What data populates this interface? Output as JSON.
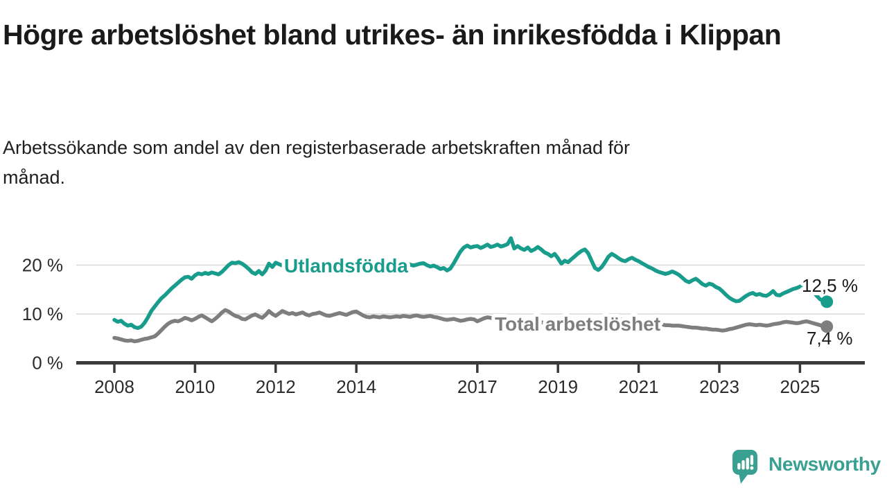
{
  "header": {
    "title": "Högre arbetslöshet bland utrikes- än inrikesfödda i Klippan",
    "subtitle": "Arbetssökande som andel av den registerbaserade arbetskraften månad för\nmånad."
  },
  "footer": {
    "brand": "Newsworthy"
  },
  "colors": {
    "accent_teal": "#189c8c",
    "line_gray": "#7e7e7e",
    "axis": "#3a3a3a",
    "grid": "#d9d9d9",
    "text_dark": "#1a1a1a",
    "brand_teal": "#3aa091",
    "background": "#ffffff"
  },
  "chart_data": {
    "type": "line",
    "unit": "%",
    "frequency": "monthly",
    "start_year": 2008,
    "start_month": 1,
    "end_year": 2025,
    "end_month": 9,
    "grid": "horizontal",
    "legend_position": "inline-labels",
    "ylim": [
      0,
      26
    ],
    "x_tick_years": [
      2008,
      2010,
      2012,
      2014,
      2017,
      2019,
      2021,
      2023,
      2025
    ],
    "y_ticks": [
      {
        "value": 0,
        "label": "0 %"
      },
      {
        "value": 10,
        "label": "10 %"
      },
      {
        "value": 20,
        "label": "20 %"
      }
    ],
    "series": [
      {
        "id": "utlandsfodda",
        "name": "Utlandsfödda",
        "color": "#189c8c",
        "end_value": 12.5,
        "end_label": "12,5 %",
        "values": [
          8.8,
          8.4,
          8.6,
          8.0,
          7.6,
          7.8,
          7.3,
          7.1,
          7.4,
          8.2,
          9.3,
          10.6,
          11.5,
          12.4,
          13.2,
          13.8,
          14.5,
          15.2,
          15.8,
          16.4,
          17.0,
          17.5,
          17.6,
          17.2,
          17.9,
          18.3,
          18.1,
          18.4,
          18.2,
          18.5,
          18.3,
          18.1,
          18.6,
          19.3,
          20.0,
          20.5,
          20.4,
          20.6,
          20.3,
          19.8,
          19.2,
          18.5,
          18.2,
          18.8,
          18.1,
          18.9,
          20.3,
          19.6,
          20.5,
          20.2,
          19.9,
          20.2,
          19.9,
          20.1,
          19.8,
          20.0,
          20.2,
          19.9,
          19.7,
          19.9,
          20.1,
          20.3,
          20.0,
          19.8,
          20.0,
          20.2,
          20.4,
          20.1,
          19.9,
          20.1,
          20.3,
          20.0,
          19.8,
          20.0,
          20.2,
          20.0,
          19.8,
          20.0,
          20.2,
          20.0,
          19.8,
          20.0,
          20.2,
          20.0,
          19.8,
          20.0,
          20.2,
          20.4,
          20.1,
          19.9,
          20.1,
          20.3,
          20.4,
          20.0,
          19.7,
          19.9,
          19.6,
          19.2,
          19.4,
          18.9,
          19.3,
          20.4,
          21.6,
          22.8,
          23.6,
          24.0,
          23.6,
          23.8,
          23.9,
          23.5,
          23.8,
          24.2,
          23.7,
          23.9,
          24.2,
          23.8,
          24.0,
          24.3,
          25.5,
          23.4,
          23.9,
          23.4,
          23.1,
          23.6,
          22.9,
          23.2,
          23.7,
          23.2,
          22.6,
          22.3,
          21.8,
          22.3,
          21.4,
          20.3,
          20.9,
          20.6,
          21.2,
          21.8,
          22.4,
          22.9,
          23.2,
          22.4,
          20.9,
          19.4,
          19.0,
          19.6,
          20.6,
          21.7,
          22.3,
          21.9,
          21.4,
          21.0,
          20.8,
          21.2,
          21.5,
          21.1,
          20.8,
          20.4,
          20.0,
          19.6,
          19.3,
          18.9,
          18.6,
          18.4,
          18.2,
          18.4,
          18.7,
          18.4,
          18.0,
          17.4,
          16.8,
          16.5,
          16.9,
          17.2,
          16.7,
          16.1,
          15.8,
          16.2,
          16.0,
          15.5,
          15.2,
          14.6,
          13.9,
          13.3,
          12.9,
          12.6,
          12.7,
          13.2,
          13.7,
          14.1,
          14.3,
          13.9,
          14.1,
          13.8,
          13.7,
          14.1,
          14.7,
          13.9,
          13.8,
          14.2,
          14.5,
          14.8,
          15.1,
          15.3,
          15.6,
          15.9,
          16.1,
          15.3,
          14.5,
          13.7,
          13.0,
          12.7,
          12.5
        ]
      },
      {
        "id": "total",
        "name": "Total arbetslöshet",
        "color": "#7e7e7e",
        "end_value": 7.4,
        "end_label": "7,4 %",
        "values": [
          5.1,
          5.0,
          4.8,
          4.6,
          4.5,
          4.6,
          4.4,
          4.5,
          4.7,
          4.9,
          5.0,
          5.2,
          5.4,
          6.0,
          6.7,
          7.4,
          8.0,
          8.4,
          8.6,
          8.5,
          8.8,
          9.2,
          9.0,
          8.7,
          9.0,
          9.4,
          9.7,
          9.3,
          8.9,
          8.5,
          9.0,
          9.6,
          10.3,
          10.8,
          10.5,
          10.0,
          9.6,
          9.4,
          9.0,
          8.9,
          9.3,
          9.7,
          9.9,
          9.5,
          9.2,
          9.8,
          10.6,
          10.0,
          9.6,
          10.1,
          10.6,
          10.3,
          10.0,
          10.2,
          9.9,
          10.1,
          10.3,
          9.9,
          9.7,
          10.0,
          10.1,
          10.3,
          10.0,
          9.7,
          9.6,
          9.8,
          10.0,
          10.2,
          10.0,
          9.8,
          10.1,
          10.4,
          10.5,
          10.1,
          9.7,
          9.4,
          9.3,
          9.5,
          9.4,
          9.3,
          9.5,
          9.4,
          9.3,
          9.4,
          9.5,
          9.4,
          9.6,
          9.5,
          9.4,
          9.6,
          9.7,
          9.5,
          9.4,
          9.5,
          9.6,
          9.4,
          9.3,
          9.1,
          8.9,
          8.8,
          8.9,
          9.0,
          8.8,
          8.6,
          8.7,
          8.9,
          9.0,
          8.9,
          8.5,
          8.8,
          9.1,
          9.3,
          9.2,
          9.0,
          8.9,
          9.0,
          9.1,
          9.0,
          8.9,
          8.8,
          8.7,
          8.6,
          8.5,
          8.5,
          8.4,
          8.3,
          8.2,
          8.3,
          8.2,
          8.1,
          8.0,
          8.0,
          7.9,
          7.8,
          7.8,
          7.9,
          7.8,
          7.7,
          7.8,
          7.9,
          7.8,
          7.8,
          7.9,
          8.0,
          8.2,
          8.4,
          8.8,
          9.1,
          9.2,
          9.1,
          9.0,
          8.9,
          8.8,
          8.7,
          8.6,
          8.5,
          8.4,
          8.3,
          8.2,
          8.1,
          8.0,
          7.9,
          7.8,
          7.8,
          7.7,
          7.7,
          7.6,
          7.6,
          7.6,
          7.5,
          7.4,
          7.3,
          7.2,
          7.2,
          7.1,
          7.0,
          7.0,
          6.9,
          6.8,
          6.8,
          6.7,
          6.6,
          6.7,
          6.9,
          7.0,
          7.2,
          7.4,
          7.6,
          7.8,
          7.9,
          7.8,
          7.7,
          7.8,
          7.7,
          7.6,
          7.7,
          7.9,
          8.0,
          8.1,
          8.3,
          8.4,
          8.3,
          8.2,
          8.1,
          8.2,
          8.4,
          8.5,
          8.3,
          8.1,
          7.9,
          7.7,
          7.5,
          7.4
        ]
      }
    ]
  }
}
